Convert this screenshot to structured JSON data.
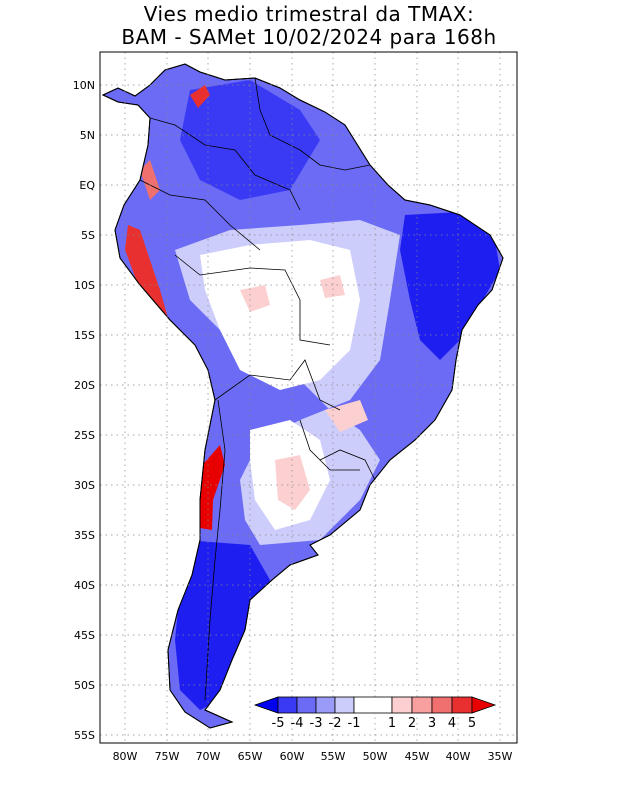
{
  "title_line1": "Vies medio trimestral da TMAX:",
  "title_line2": "BAM - SAMet 10/02/2024  para 168h",
  "map": {
    "region": "South America",
    "lon_range": [
      -84,
      -34
    ],
    "lat_range": [
      -56,
      13
    ],
    "lat_ticks": [
      "10N",
      "5N",
      "EQ",
      "5S",
      "10S",
      "15S",
      "20S",
      "25S",
      "30S",
      "35S",
      "40S",
      "45S",
      "50S",
      "55S"
    ],
    "lon_ticks": [
      "80W",
      "75W",
      "70W",
      "65W",
      "60W",
      "55W",
      "50W",
      "45W",
      "40W",
      "35W"
    ],
    "grid": "dotted"
  },
  "colorbar": {
    "labels": [
      "-5",
      "-4",
      "-3",
      "-2",
      "-1",
      "1",
      "2",
      "3",
      "4",
      "5"
    ],
    "colors": [
      "#0000ee",
      "#3a3af5",
      "#6b6bf5",
      "#9a9af8",
      "#cdcdfb",
      "#ffffff",
      "#fcd0d0",
      "#f8a0a0",
      "#f07070",
      "#e83030",
      "#e80000"
    ]
  }
}
